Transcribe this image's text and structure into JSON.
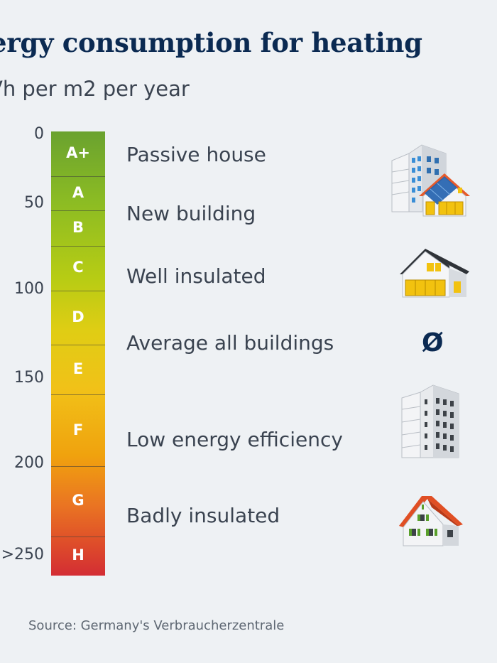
{
  "title": "ergy consumption for heating",
  "subtitle": "Vh per m2 per year",
  "source": "Source: Germany's Verbraucherzentrale",
  "chart_data": {
    "type": "bar",
    "title": "ergy consumption for heating",
    "ylabel": "Vh per m2 per year",
    "ylim": [
      0,
      250
    ],
    "y_ticks": [
      "0",
      "50",
      "100",
      "150",
      "200",
      ">250"
    ],
    "categories": [
      "A+",
      "A",
      "B",
      "C",
      "D",
      "E",
      "F",
      "G",
      "H"
    ],
    "bands": [
      {
        "grade": "A+",
        "from": 0,
        "to": 26
      },
      {
        "grade": "A",
        "from": 26,
        "to": 46
      },
      {
        "grade": "B",
        "from": 46,
        "to": 67
      },
      {
        "grade": "C",
        "from": 67,
        "to": 93
      },
      {
        "grade": "D",
        "from": 93,
        "to": 125
      },
      {
        "grade": "E",
        "from": 125,
        "to": 154
      },
      {
        "grade": "F",
        "from": 154,
        "to": 196
      },
      {
        "grade": "G",
        "from": 196,
        "to": 237
      },
      {
        "grade": "H",
        "from": 237,
        "to": 260
      }
    ],
    "annotations": [
      {
        "text": "Passive house",
        "y": 12,
        "icon": "passive-house-buildings-icon"
      },
      {
        "text": "New building",
        "y": 46,
        "icon": ""
      },
      {
        "text": "Well insulated",
        "y": 83,
        "icon": "well-insulated-house-icon"
      },
      {
        "text": "Average all buildings",
        "y": 121,
        "symbol": "Ø"
      },
      {
        "text": "Low energy efficiency",
        "y": 177,
        "icon": "apartment-block-icon"
      },
      {
        "text": "Badly insulated",
        "y": 221,
        "icon": "old-house-icon"
      }
    ]
  }
}
